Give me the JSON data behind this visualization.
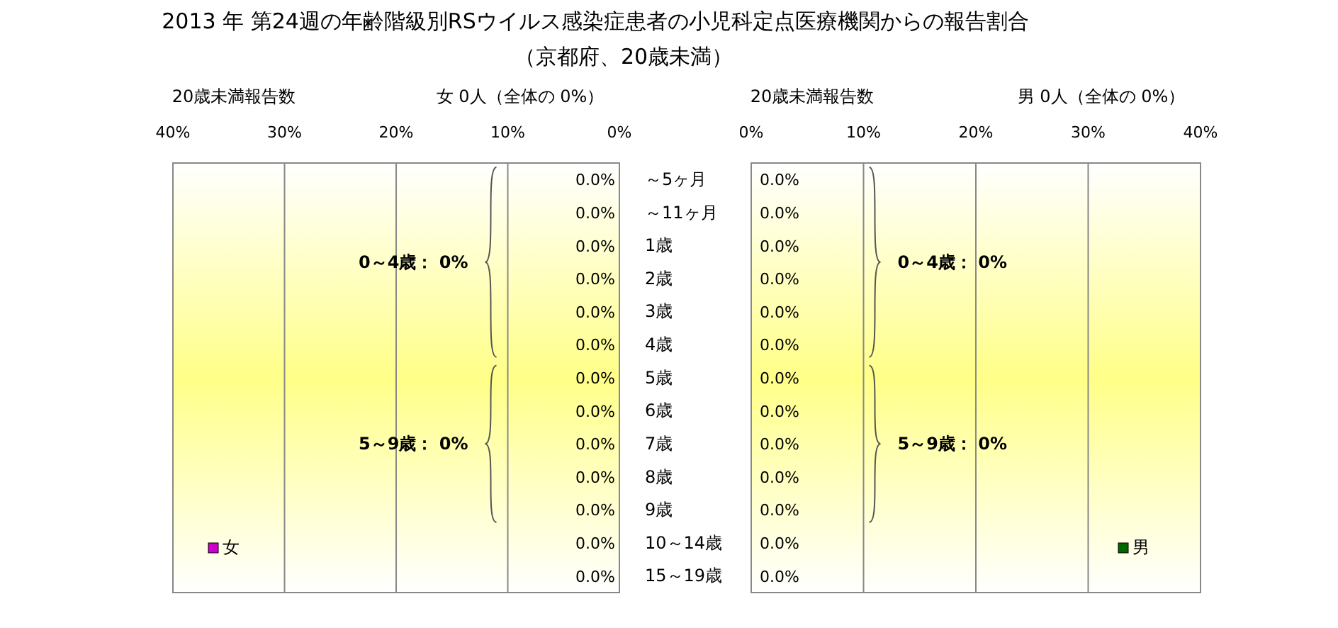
{
  "chart_data": [
    {
      "type": "bar",
      "orientation": "horizontal",
      "title": "2013 年 第24週の年齢階級別RSウイルス感染症患者の小児科定点医療機関からの報告割合",
      "subtitle": "（京都府、20歳未満）",
      "categories": [
        "～5ヶ月",
        "～11ヶ月",
        "1歳",
        "2歳",
        "3歳",
        "4歳",
        "5歳",
        "6歳",
        "7歳",
        "8歳",
        "9歳",
        "10～14歳",
        "15～19歳"
      ],
      "series": [
        {
          "name": "女",
          "color": "#cc00cc",
          "values": [
            0,
            0,
            0,
            0,
            0,
            0,
            0,
            0,
            0,
            0,
            0,
            0,
            0
          ],
          "value_labels": [
            "0.0%",
            "0.0%",
            "0.0%",
            "0.0%",
            "0.0%",
            "0.0%",
            "0.0%",
            "0.0%",
            "0.0%",
            "0.0%",
            "0.0%",
            "0.0%",
            "0.0%"
          ]
        }
      ],
      "xlim": [
        40,
        0
      ],
      "xticks": [
        {
          "value": 40,
          "label": "40%"
        },
        {
          "value": 30,
          "label": "30%"
        },
        {
          "value": 20,
          "label": "20%"
        },
        {
          "value": 10,
          "label": "10%"
        },
        {
          "value": 0,
          "label": "0%"
        }
      ],
      "grid": "x",
      "legend": "bottom left",
      "annotations": [
        "20歳未満報告数",
        "女 0人（全体の 0%）",
        "0～4歳： 0%",
        "5～9歳： 0%"
      ]
    },
    {
      "type": "bar",
      "orientation": "horizontal",
      "categories": [
        null,
        null,
        null,
        null,
        null,
        null,
        null,
        null,
        null,
        null,
        null,
        null,
        null
      ],
      "series": [
        {
          "name": "男",
          "color": "#006600",
          "values": [
            0,
            0,
            0,
            0,
            0,
            0,
            0,
            0,
            0,
            0,
            0,
            0,
            0
          ],
          "value_labels": [
            "0.0%",
            "0.0%",
            "0.0%",
            "0.0%",
            "0.0%",
            "0.0%",
            "0.0%",
            "0.0%",
            "0.0%",
            "0.0%",
            "0.0%",
            "0.0%",
            "0.0%"
          ]
        }
      ],
      "xlim": [
        0,
        40
      ],
      "xticks": [
        {
          "value": 0,
          "label": "0%"
        },
        {
          "value": 10,
          "label": "10%"
        },
        {
          "value": 20,
          "label": "20%"
        },
        {
          "value": 30,
          "label": "30%"
        },
        {
          "value": 40,
          "label": "40%"
        }
      ],
      "grid": "x",
      "legend": "bottom right",
      "tick_labels": "x",
      "annotations": [
        "20歳未満報告数",
        "男 0人（全体の 0%）",
        "0～4歳： 0%",
        "5～9歳： 0%"
      ]
    }
  ]
}
